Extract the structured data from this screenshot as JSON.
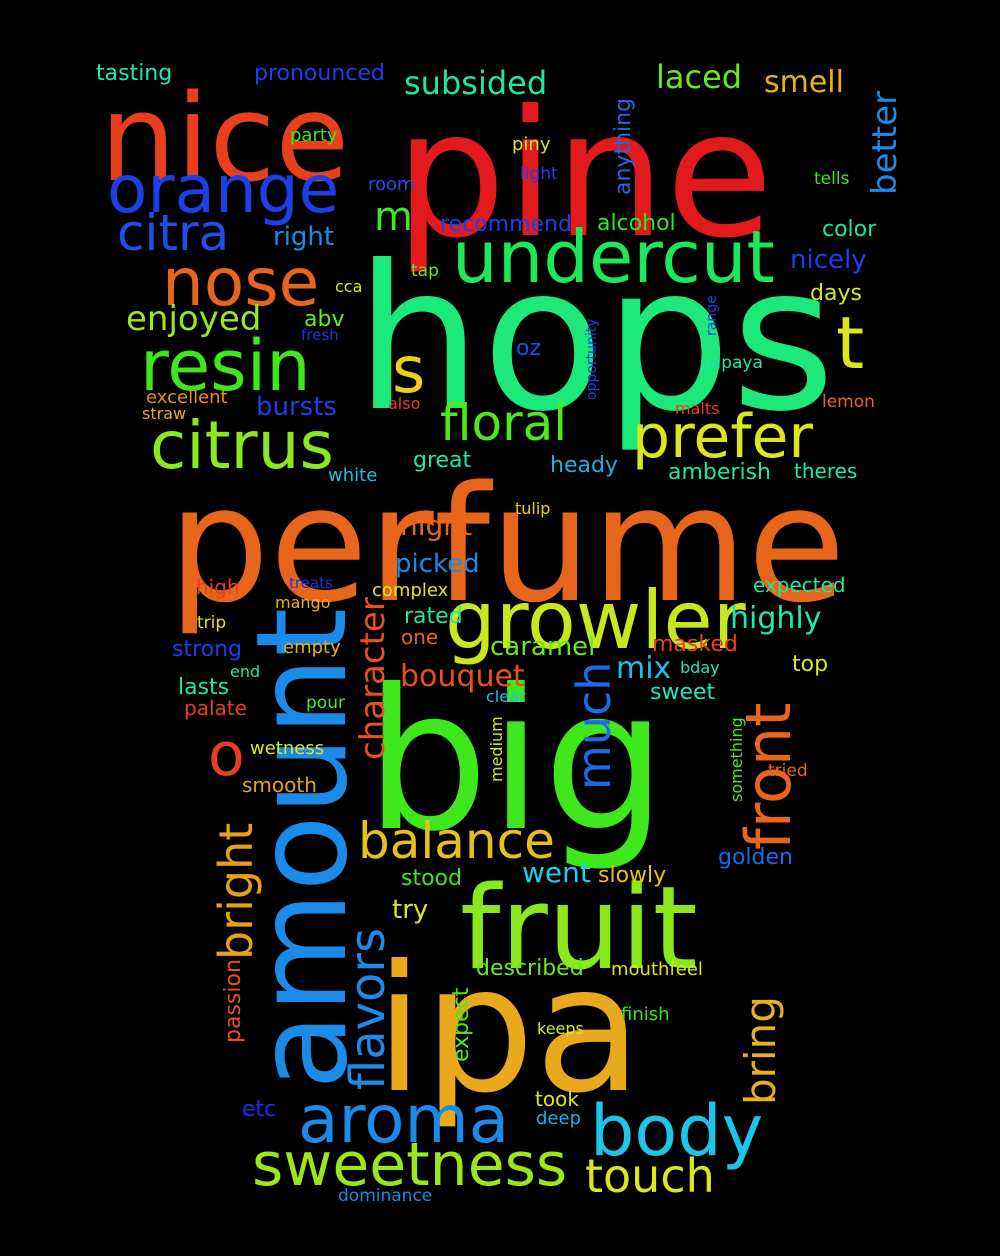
{
  "title": "IPA review word cloud",
  "background": "#000000",
  "words": [
    {
      "id": "pine",
      "text": "pine",
      "color": "#e31a1c"
    },
    {
      "id": "nice",
      "text": "nice",
      "color": "#e8401c"
    },
    {
      "id": "hops",
      "text": "hops",
      "color": "#1de87a"
    },
    {
      "id": "perfume",
      "text": "perfume",
      "color": "#e8661c"
    },
    {
      "id": "big",
      "text": "big",
      "color": "#3ee81c"
    },
    {
      "id": "ipa",
      "text": "ipa",
      "color": "#e8a91c"
    },
    {
      "id": "amount",
      "text": "amount",
      "color": "#1c8ae8"
    },
    {
      "id": "fruit",
      "text": "fruit",
      "color": "#8ae81c"
    },
    {
      "id": "growler",
      "text": "growler",
      "color": "#c6e81c"
    },
    {
      "id": "orange",
      "text": "orange",
      "color": "#1c40e8"
    },
    {
      "id": "undercut",
      "text": "undercut",
      "color": "#1ce85a"
    },
    {
      "id": "nose",
      "text": "nose",
      "color": "#e8661c"
    },
    {
      "id": "resin",
      "text": "resin",
      "color": "#3ee81c"
    },
    {
      "id": "citrus",
      "text": "citrus",
      "color": "#8ae81c"
    },
    {
      "id": "citra",
      "text": "citra",
      "color": "#1c50e8"
    },
    {
      "id": "prefer",
      "text": "prefer",
      "color": "#d8e81c"
    },
    {
      "id": "aroma",
      "text": "aroma",
      "color": "#1c8ae8"
    },
    {
      "id": "sweetness",
      "text": "sweetness",
      "color": "#9ae81c"
    },
    {
      "id": "body",
      "text": "body",
      "color": "#1cc6e8"
    },
    {
      "id": "front",
      "text": "front",
      "color": "#e8661c"
    },
    {
      "id": "floral",
      "text": "floral",
      "color": "#4ee81c"
    },
    {
      "id": "balance",
      "text": "balance",
      "color": "#e8c01c"
    },
    {
      "id": "touch",
      "text": "touch",
      "color": "#d8e81c"
    },
    {
      "id": "flavors",
      "text": "flavors",
      "color": "#1c8ae8"
    },
    {
      "id": "much",
      "text": "much",
      "color": "#1c6ae8"
    },
    {
      "id": "bright",
      "text": "bright",
      "color": "#e8a01c"
    },
    {
      "id": "character",
      "text": "character",
      "color": "#e8501c"
    },
    {
      "id": "bring",
      "text": "bring",
      "color": "#e8b01c"
    },
    {
      "id": "s",
      "text": "s",
      "color": "#e8d01c"
    },
    {
      "id": "t",
      "text": "t",
      "color": "#d8e81c"
    },
    {
      "id": "o",
      "text": "o",
      "color": "#e8401c"
    },
    {
      "id": "m",
      "text": "m",
      "color": "#3ee81c"
    },
    {
      "id": "enjoyed",
      "text": "enjoyed",
      "color": "#9ae81c"
    },
    {
      "id": "subsided",
      "text": "subsided",
      "color": "#1ce8a0"
    },
    {
      "id": "laced",
      "text": "laced",
      "color": "#6ae81c"
    },
    {
      "id": "smell",
      "text": "smell",
      "color": "#e8b01c"
    },
    {
      "id": "better",
      "text": "better",
      "color": "#1c8ae8"
    },
    {
      "id": "bouquet",
      "text": "bouquet",
      "color": "#e8501c"
    },
    {
      "id": "highly",
      "text": "highly",
      "color": "#1ce8b0"
    },
    {
      "id": "mix",
      "text": "mix",
      "color": "#1cc0e8"
    },
    {
      "id": "caramel",
      "text": "caramel",
      "color": "#6ae81c"
    },
    {
      "id": "night",
      "text": "night",
      "color": "#e8661c"
    },
    {
      "id": "picked",
      "text": "picked",
      "color": "#1c8ae8"
    },
    {
      "id": "went",
      "text": "went",
      "color": "#1cd0e8"
    },
    {
      "id": "nicely",
      "text": "nicely",
      "color": "#1c40e8"
    },
    {
      "id": "bursts",
      "text": "bursts",
      "color": "#1c40e8"
    },
    {
      "id": "tasting",
      "text": "tasting",
      "color": "#1ce8c0"
    },
    {
      "id": "pronounced",
      "text": "pronounced",
      "color": "#1c40e8"
    },
    {
      "id": "recommend",
      "text": "recommend",
      "color": "#1c40e8"
    },
    {
      "id": "alcohol",
      "text": "alcohol",
      "color": "#2ee81c"
    },
    {
      "id": "color",
      "text": "color",
      "color": "#1ce8a0"
    },
    {
      "id": "right",
      "text": "right",
      "color": "#1c8ae8"
    },
    {
      "id": "abv",
      "text": "abv",
      "color": "#6ae81c"
    },
    {
      "id": "anything",
      "text": "anything",
      "color": "#1c6ae8"
    },
    {
      "id": "days",
      "text": "days",
      "color": "#d8e81c"
    },
    {
      "id": "oz",
      "text": "oz",
      "color": "#1c50e8"
    },
    {
      "id": "great",
      "text": "great",
      "color": "#1ce8a0"
    },
    {
      "id": "heady",
      "text": "heady",
      "color": "#1cb0e8"
    },
    {
      "id": "amberish",
      "text": "amberish",
      "color": "#1ce8a0"
    },
    {
      "id": "theres",
      "text": "theres",
      "color": "#1ce8b0"
    },
    {
      "id": "strong",
      "text": "strong",
      "color": "#1c40e8"
    },
    {
      "id": "lasts",
      "text": "lasts",
      "color": "#1ce8a0"
    },
    {
      "id": "stood",
      "text": "stood",
      "color": "#3ee81c"
    },
    {
      "id": "try",
      "text": "try",
      "color": "#d8e81c"
    },
    {
      "id": "slowly",
      "text": "slowly",
      "color": "#e8c01c"
    },
    {
      "id": "golden",
      "text": "golden",
      "color": "#1c6ae8"
    },
    {
      "id": "described",
      "text": "described",
      "color": "#6ae81c"
    },
    {
      "id": "mouthfeel",
      "text": "mouthfeel",
      "color": "#d8e81c"
    },
    {
      "id": "sweet",
      "text": "sweet",
      "color": "#1ce8c0"
    },
    {
      "id": "rated",
      "text": "rated",
      "color": "#1ce8a0"
    },
    {
      "id": "one",
      "text": "one",
      "color": "#e8661c"
    },
    {
      "id": "masked",
      "text": "masked",
      "color": "#e8401c"
    },
    {
      "id": "top",
      "text": "top",
      "color": "#d8e81c"
    },
    {
      "id": "expected",
      "text": "expected",
      "color": "#1ce8a0"
    },
    {
      "id": "excellent",
      "text": "excellent",
      "color": "#e8901c"
    },
    {
      "id": "smooth",
      "text": "smooth",
      "color": "#e8a01c"
    },
    {
      "id": "wetness",
      "text": "wetness",
      "color": "#d8e81c"
    },
    {
      "id": "palate",
      "text": "palate",
      "color": "#e8401c"
    },
    {
      "id": "passion",
      "text": "passion",
      "color": "#e8501c"
    },
    {
      "id": "expect",
      "text": "expect",
      "color": "#4ee81c"
    },
    {
      "id": "finish",
      "text": "finish",
      "color": "#2ee81c"
    },
    {
      "id": "etc",
      "text": "etc",
      "color": "#1c30e8"
    },
    {
      "id": "took",
      "text": "took",
      "color": "#d8e81c"
    },
    {
      "id": "deep",
      "text": "deep",
      "color": "#1cb0e8"
    },
    {
      "id": "dominance",
      "text": "dominance",
      "color": "#1c8ae8"
    },
    {
      "id": "high",
      "text": "high",
      "color": "#e8401c"
    },
    {
      "id": "empty",
      "text": "empty",
      "color": "#e8b01c"
    },
    {
      "id": "complex",
      "text": "complex",
      "color": "#d8e81c"
    },
    {
      "id": "party",
      "text": "party",
      "color": "#3ee81c"
    },
    {
      "id": "piny",
      "text": "piny",
      "color": "#d8e81c"
    },
    {
      "id": "light",
      "text": "light",
      "color": "#1c40e8"
    },
    {
      "id": "tells",
      "text": "tells",
      "color": "#3ee81c"
    },
    {
      "id": "room",
      "text": "room",
      "color": "#1c50e8"
    },
    {
      "id": "tap",
      "text": "tap",
      "color": "#6ae81c"
    },
    {
      "id": "cca",
      "text": "cca",
      "color": "#d8e81c"
    },
    {
      "id": "fresh",
      "text": "fresh",
      "color": "#1c30e8"
    },
    {
      "id": "range",
      "text": "range",
      "color": "#1c40e8"
    },
    {
      "id": "opportunity",
      "text": "opportunity",
      "color": "#1c40e8"
    },
    {
      "id": "papaya",
      "text": "papaya",
      "color": "#1ce8a0"
    },
    {
      "id": "also",
      "text": "also",
      "color": "#e8401c"
    },
    {
      "id": "malts",
      "text": "malts",
      "color": "#e8401c"
    },
    {
      "id": "lemon",
      "text": "lemon",
      "color": "#e8661c"
    },
    {
      "id": "straw",
      "text": "straw",
      "color": "#e8b01c"
    },
    {
      "id": "white",
      "text": "white",
      "color": "#1cc0e8"
    },
    {
      "id": "tulip",
      "text": "tulip",
      "color": "#e8d01c"
    },
    {
      "id": "treats",
      "text": "treats",
      "color": "#1c30e8"
    },
    {
      "id": "mango",
      "text": "mango",
      "color": "#e8b01c"
    },
    {
      "id": "trip",
      "text": "trip",
      "color": "#d8e81c"
    },
    {
      "id": "end",
      "text": "end",
      "color": "#1ce8a0"
    },
    {
      "id": "pour",
      "text": "pour",
      "color": "#4ee81c"
    },
    {
      "id": "bday",
      "text": "bday",
      "color": "#1ce8c0"
    },
    {
      "id": "clear",
      "text": "clear",
      "color": "#1cc0e8"
    },
    {
      "id": "medium",
      "text": "medium",
      "color": "#d8e81c"
    },
    {
      "id": "something",
      "text": "something",
      "color": "#4ee81c"
    },
    {
      "id": "tried",
      "text": "tried",
      "color": "#e8661c"
    },
    {
      "id": "keeps",
      "text": "keeps",
      "color": "#d8e81c"
    }
  ]
}
